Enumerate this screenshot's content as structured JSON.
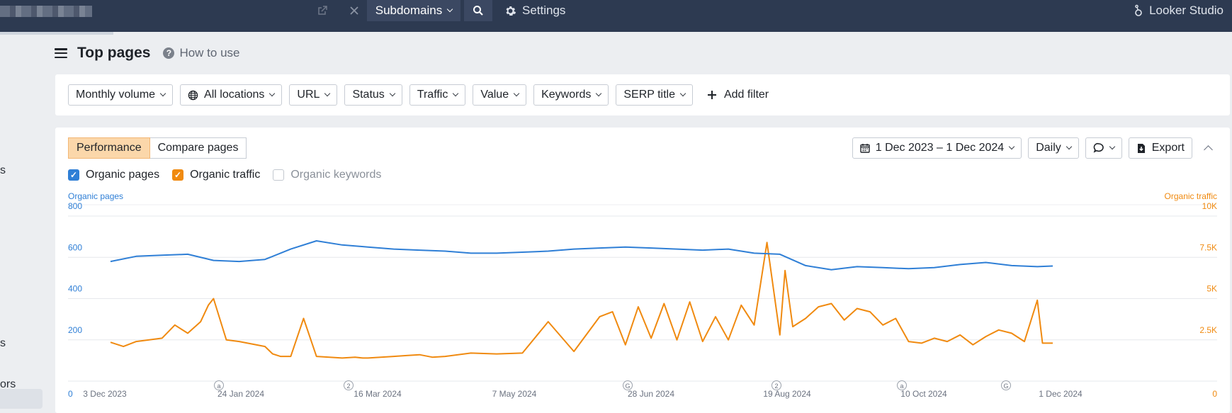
{
  "topbar": {
    "subdomains_label": "Subdomains",
    "settings_label": "Settings",
    "looker_label": "Looker Studio"
  },
  "sidebar": {
    "fragments": [
      "s",
      "s",
      "ors"
    ]
  },
  "header": {
    "title": "Top pages",
    "howto_label": "How to use"
  },
  "filters": [
    {
      "label": "Monthly volume"
    },
    {
      "label": "All locations",
      "icon": "globe-icon"
    },
    {
      "label": "URL"
    },
    {
      "label": "Status"
    },
    {
      "label": "Traffic"
    },
    {
      "label": "Value"
    },
    {
      "label": "Keywords"
    },
    {
      "label": "SERP title"
    }
  ],
  "add_filter_label": "Add filter",
  "panel": {
    "tabs": [
      "Performance",
      "Compare pages"
    ],
    "active_tab": "Performance",
    "date_range": "1 Dec 2023 – 1 Dec 2024",
    "granularity": "Daily",
    "export_label": "Export",
    "checkboxes": [
      {
        "label": "Organic pages",
        "checked": true,
        "color": "#2f7fd6"
      },
      {
        "label": "Organic traffic",
        "checked": true,
        "color": "#f08a10"
      },
      {
        "label": "Organic keywords",
        "checked": false
      }
    ]
  },
  "chart_data": {
    "type": "line",
    "left_axis_label": "Organic pages",
    "right_axis_label": "Organic traffic",
    "left_ticks": [
      "0",
      "200",
      "400",
      "600",
      "800"
    ],
    "right_ticks": [
      "0",
      "2.5K",
      "5K",
      "7.5K",
      "10K"
    ],
    "left_ylim": [
      0,
      800
    ],
    "right_ylim": [
      0,
      10000
    ],
    "x_ticks": [
      "3 Dec 2023",
      "24 Jan 2024",
      "16 Mar 2024",
      "7 May 2024",
      "28 Jun 2024",
      "19 Aug 2024",
      "10 Oct 2024",
      "1 Dec 2024"
    ],
    "annotations": [
      "a",
      "2",
      "G",
      "2",
      "a",
      "G"
    ],
    "grid": true,
    "colors": {
      "pages": "#2f7fd6",
      "traffic": "#f08a10"
    },
    "series": [
      {
        "name": "Organic pages",
        "axis": "left",
        "x_days": [
          0,
          10,
          20,
          30,
          40,
          50,
          60,
          70,
          80,
          90,
          100,
          110,
          120,
          130,
          140,
          150,
          160,
          170,
          180,
          190,
          200,
          210,
          220,
          230,
          240,
          250,
          260,
          270,
          280,
          290,
          300,
          310,
          320,
          330,
          340,
          350,
          360,
          366
        ],
        "values": [
          580,
          605,
          610,
          615,
          585,
          580,
          590,
          640,
          680,
          660,
          650,
          640,
          635,
          630,
          620,
          620,
          625,
          630,
          640,
          645,
          650,
          645,
          640,
          635,
          640,
          620,
          615,
          560,
          540,
          555,
          550,
          545,
          550,
          565,
          575,
          560,
          555,
          558
        ]
      },
      {
        "name": "Organic traffic",
        "axis": "right",
        "x_days": [
          0,
          5,
          10,
          15,
          20,
          25,
          30,
          35,
          38,
          40,
          45,
          50,
          55,
          60,
          63,
          66,
          70,
          75,
          80,
          85,
          90,
          95,
          98,
          100,
          105,
          110,
          115,
          120,
          125,
          130,
          140,
          150,
          160,
          170,
          180,
          190,
          195,
          200,
          205,
          210,
          215,
          220,
          225,
          230,
          235,
          240,
          245,
          250,
          255,
          260,
          262,
          265,
          270,
          275,
          280,
          285,
          290,
          295,
          300,
          305,
          310,
          315,
          320,
          325,
          330,
          335,
          340,
          345,
          350,
          355,
          360,
          362,
          366
        ],
        "values": [
          2350,
          2100,
          2400,
          2500,
          2600,
          3400,
          2900,
          3600,
          4600,
          5000,
          2500,
          2400,
          2250,
          2100,
          1650,
          1500,
          1500,
          3800,
          1500,
          1450,
          1400,
          1450,
          1400,
          1400,
          1450,
          1500,
          1550,
          1600,
          1450,
          1500,
          1700,
          1650,
          1700,
          3600,
          1800,
          3900,
          4200,
          2200,
          4500,
          2600,
          4700,
          2500,
          4800,
          2400,
          3900,
          2500,
          4600,
          3400,
          8400,
          2800,
          6700,
          3300,
          3800,
          4500,
          4700,
          3700,
          4400,
          4200,
          3400,
          3800,
          2400,
          2300,
          2600,
          2400,
          2800,
          2200,
          2700,
          3100,
          2900,
          2400,
          4900,
          2300,
          2300
        ]
      }
    ]
  }
}
